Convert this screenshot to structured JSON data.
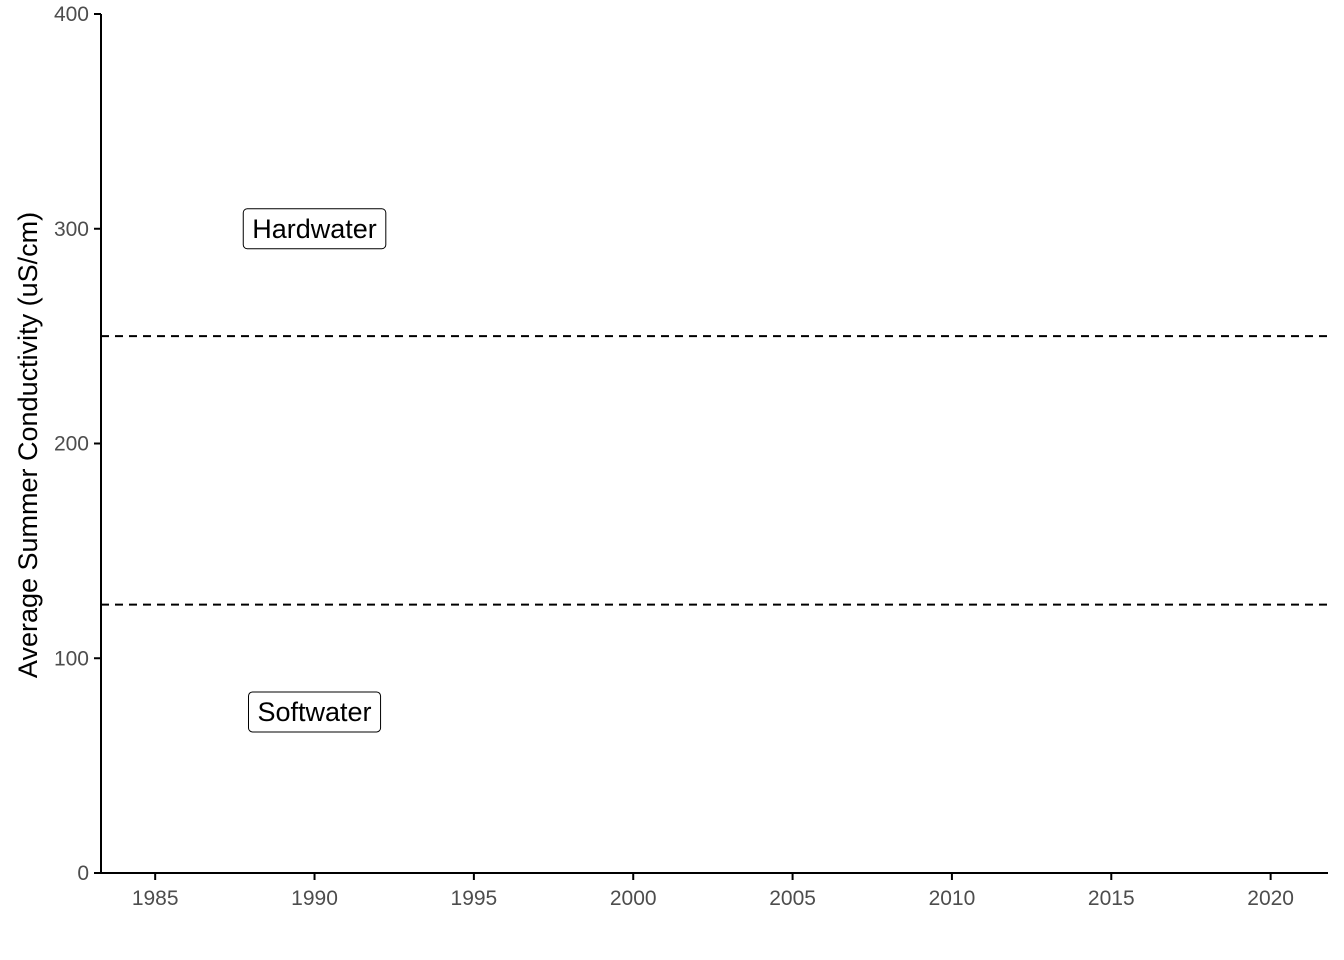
{
  "chart_data": {
    "type": "line",
    "title": "",
    "xlabel": "",
    "ylabel": "Average Summer Conductivity (uS/cm)",
    "xlim": [
      1983.3,
      2021.8
    ],
    "ylim": [
      0,
      400
    ],
    "x_ticks": [
      1985,
      1990,
      1995,
      2000,
      2005,
      2010,
      2015,
      2020
    ],
    "y_ticks": [
      0,
      100,
      200,
      300,
      400
    ],
    "grid": false,
    "series": [],
    "reference_lines": [
      {
        "y": 250,
        "style": "dashed",
        "color": "#000000"
      },
      {
        "y": 125,
        "style": "dashed",
        "color": "#000000"
      }
    ],
    "annotations": [
      {
        "text": "Hardwater",
        "x": 1990,
        "y": 300
      },
      {
        "text": "Softwater",
        "x": 1990,
        "y": 75
      }
    ]
  },
  "colors": {
    "axis": "#000000",
    "tick_label": "#4d4d4d",
    "reference_line": "#000000"
  }
}
